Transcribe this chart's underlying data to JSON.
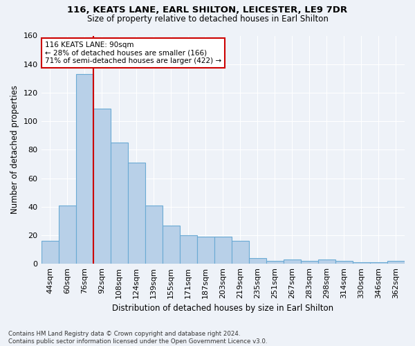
{
  "title": "116, KEATS LANE, EARL SHILTON, LEICESTER, LE9 7DR",
  "subtitle": "Size of property relative to detached houses in Earl Shilton",
  "xlabel": "Distribution of detached houses by size in Earl Shilton",
  "ylabel": "Number of detached properties",
  "categories": [
    "44sqm",
    "60sqm",
    "76sqm",
    "92sqm",
    "108sqm",
    "124sqm",
    "139sqm",
    "155sqm",
    "171sqm",
    "187sqm",
    "203sqm",
    "219sqm",
    "235sqm",
    "251sqm",
    "267sqm",
    "283sqm",
    "298sqm",
    "314sqm",
    "330sqm",
    "346sqm",
    "362sqm"
  ],
  "values": [
    16,
    41,
    133,
    109,
    85,
    71,
    41,
    27,
    20,
    19,
    19,
    16,
    4,
    2,
    3,
    2,
    3,
    2,
    1,
    1,
    2
  ],
  "bar_color": "#b8d0e8",
  "bar_edge_color": "#6aaad4",
  "ylim": [
    0,
    160
  ],
  "yticks": [
    0,
    20,
    40,
    60,
    80,
    100,
    120,
    140,
    160
  ],
  "property_line_bar_index": 2,
  "annotation_line1": "116 KEATS LANE: 90sqm",
  "annotation_line2": "← 28% of detached houses are smaller (166)",
  "annotation_line3": "71% of semi-detached houses are larger (422) →",
  "annotation_box_facecolor": "#ffffff",
  "annotation_box_edgecolor": "#cc0000",
  "background_color": "#eef2f8",
  "grid_color": "#ffffff",
  "title_fontsize": 9.5,
  "subtitle_fontsize": 8.5,
  "footnote": "Contains HM Land Registry data © Crown copyright and database right 2024.\nContains public sector information licensed under the Open Government Licence v3.0."
}
